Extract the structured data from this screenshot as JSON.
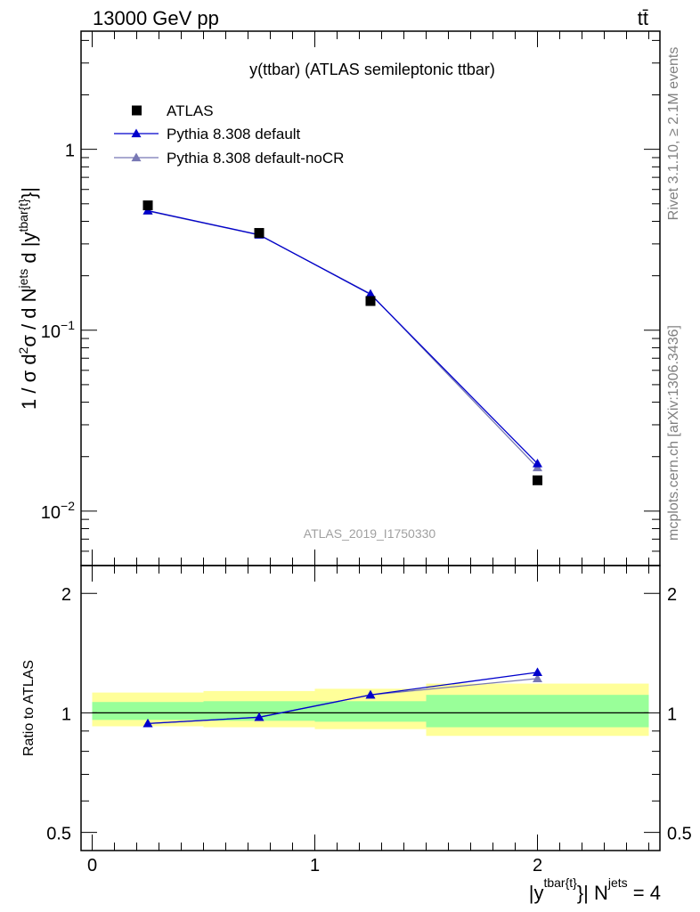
{
  "header": {
    "left": "13000 GeV pp",
    "right": "tt̄"
  },
  "side_text": {
    "rivet": "Rivet 3.1.10, ≥ 2.1M events",
    "mcplots": "mcplots.cern.ch [arXiv:1306.3436]"
  },
  "chart_data": [
    {
      "type": "scatter",
      "title": "y(ttbar) (ATLAS semileptonic ttbar)",
      "watermark": "ATLAS_2019_I1750330",
      "ylabel_parts": {
        "main": "1 / σ d",
        "sup1": "2",
        "mid": "σ / d N",
        "sup2": "jets",
        "tail": " d |y",
        "sup3": "tbar{t}",
        "end": "}|"
      },
      "xlabel_parts": {
        "pre": "|y",
        "sup1": "tbar{t}",
        "mid": "}| N",
        "sup2": "jets",
        "post": " = 4"
      },
      "yscale": "log",
      "ylim": [
        0.005,
        4.5
      ],
      "xlim": [
        -0.05,
        2.55
      ],
      "y_ticks": [
        {
          "value": 1,
          "base": "1",
          "exp": ""
        },
        {
          "value": 0.1,
          "base": "10",
          "exp": "−1"
        },
        {
          "value": 0.01,
          "base": "10",
          "exp": "−2"
        }
      ],
      "legend_position": "top-left",
      "series": [
        {
          "name": "ATLAS",
          "marker": "square",
          "color": "#000000",
          "x": [
            0.25,
            0.75,
            1.25,
            2.0
          ],
          "y": [
            0.49,
            0.345,
            0.145,
            0.0148
          ]
        },
        {
          "name": "Pythia 8.308 default",
          "marker": "triangle",
          "color": "#0000cc",
          "x": [
            0.25,
            0.75,
            1.25,
            2.0
          ],
          "y": [
            0.458,
            0.337,
            0.158,
            0.0183
          ]
        },
        {
          "name": "Pythia 8.308 default-noCR",
          "marker": "triangle",
          "color": "#7878b4",
          "x": [
            0.25,
            0.75,
            1.25,
            2.0
          ],
          "y": [
            0.456,
            0.336,
            0.159,
            0.0174
          ]
        }
      ]
    },
    {
      "type": "line",
      "ylabel": "Ratio to ATLAS",
      "ylim": [
        0.45,
        2.35
      ],
      "xlim": [
        -0.05,
        2.55
      ],
      "y_ticks": [
        0.5,
        1,
        2
      ],
      "x_ticks": [
        0,
        1,
        2
      ],
      "bands": {
        "edges": [
          0,
          0.5,
          1.0,
          1.5,
          2.5
        ],
        "yellow_low": [
          0.925,
          0.92,
          0.91,
          0.875
        ],
        "yellow_high": [
          1.125,
          1.135,
          1.15,
          1.185
        ],
        "green_low": [
          0.96,
          0.955,
          0.95,
          0.92
        ],
        "green_high": [
          1.065,
          1.07,
          1.07,
          1.11
        ]
      },
      "series": [
        {
          "name": "Pythia 8.308 default",
          "color": "#0000cc",
          "x": [
            0.25,
            0.75,
            1.25,
            2.0
          ],
          "y": [
            0.94,
            0.975,
            1.11,
            1.265
          ]
        },
        {
          "name": "Pythia 8.308 default-noCR",
          "color": "#7878b4",
          "x": [
            0.25,
            0.75,
            1.25,
            2.0
          ],
          "y": [
            0.94,
            0.975,
            1.11,
            1.22
          ]
        }
      ]
    }
  ]
}
